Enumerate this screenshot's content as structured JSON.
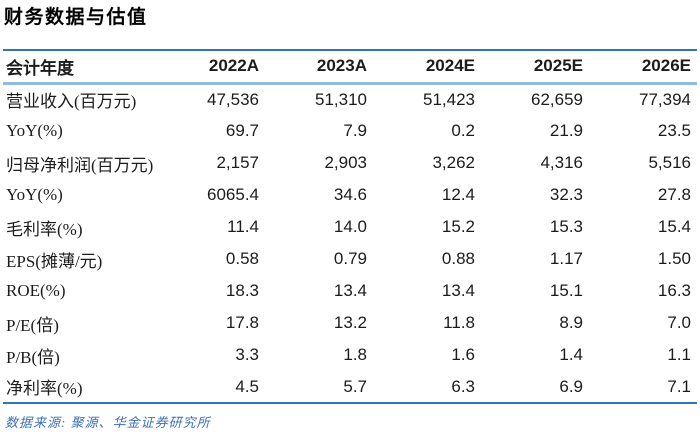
{
  "chart_data": {
    "type": "table",
    "title": "财务数据与估值",
    "columns": [
      "会计年度",
      "2022A",
      "2023A",
      "2024E",
      "2025E",
      "2026E"
    ],
    "rows": [
      {
        "label": "营业收入(百万元)",
        "values": [
          "47,536",
          "51,310",
          "51,423",
          "62,659",
          "77,394"
        ]
      },
      {
        "label": "YoY(%)",
        "values": [
          "69.7",
          "7.9",
          "0.2",
          "21.9",
          "23.5"
        ]
      },
      {
        "label": "归母净利润(百万元)",
        "values": [
          "2,157",
          "2,903",
          "3,262",
          "4,316",
          "5,516"
        ]
      },
      {
        "label": "YoY(%)",
        "values": [
          "6065.4",
          "34.6",
          "12.4",
          "32.3",
          "27.8"
        ]
      },
      {
        "label": "毛利率(%)",
        "values": [
          "11.4",
          "14.0",
          "15.2",
          "15.3",
          "15.4"
        ]
      },
      {
        "label": "EPS(摊薄/元)",
        "values": [
          "0.58",
          "0.79",
          "0.88",
          "1.17",
          "1.50"
        ]
      },
      {
        "label": "ROE(%)",
        "values": [
          "18.3",
          "13.4",
          "13.4",
          "15.1",
          "16.3"
        ]
      },
      {
        "label": "P/E(倍)",
        "values": [
          "17.8",
          "13.2",
          "11.8",
          "8.9",
          "7.0"
        ]
      },
      {
        "label": "P/B(倍)",
        "values": [
          "3.3",
          "1.8",
          "1.6",
          "1.4",
          "1.1"
        ]
      },
      {
        "label": "净利率(%)",
        "values": [
          "4.5",
          "5.7",
          "6.3",
          "6.9",
          "7.1"
        ]
      }
    ],
    "source_note": "数据来源: 聚源、华金证券研究所"
  },
  "colors": {
    "rule_dark": "#2E75B6",
    "rule_light": "#8FBCDF",
    "source_text": "#3F6FB5",
    "text": "#1C1C1C",
    "bg": "#FFFFFF"
  }
}
